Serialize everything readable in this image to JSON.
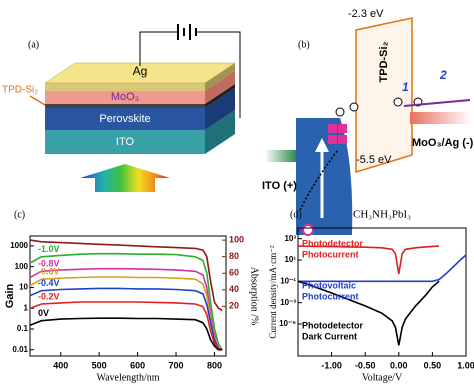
{
  "panels": {
    "a": {
      "label": "(a)",
      "ag": "Ag",
      "moo3": "MoO₃",
      "tpd": "TPD-Si₂",
      "perovskite": "Perovskite",
      "ito": "ITO"
    },
    "b": {
      "label": "(b)",
      "lumo": "-2.3 eV",
      "tpd": "TPD-Si₂",
      "step1": "1",
      "step2": "2",
      "anode": "MoO₃/Ag (-)",
      "homo": "-5.5 eV",
      "ito": "ITO (+)"
    }
  },
  "chart_data": [
    {
      "type": "line",
      "panel_label": "(c)",
      "xlabel": "Wavelength/nm",
      "ylabel": "Gain",
      "y2label": "Absorption /%",
      "ylog": true,
      "xlim": [
        320,
        830
      ],
      "xticks": [
        400,
        500,
        600,
        700,
        800
      ],
      "ylim": [
        0.005,
        3000
      ],
      "yticks": [
        1000,
        100,
        10,
        1,
        0.1,
        0.01
      ],
      "y2lim": [
        -40,
        105
      ],
      "y2ticks": [
        20,
        40,
        60,
        80,
        100
      ],
      "y2color": "#8b1a1a",
      "x": [
        320,
        350,
        400,
        450,
        500,
        550,
        600,
        650,
        700,
        750,
        770,
        780,
        790,
        800,
        810,
        820
      ],
      "series": [
        {
          "name": "-1.0V",
          "color": "#2bb02b",
          "values": [
            150,
            300,
            350,
            400,
            420,
            420,
            400,
            400,
            380,
            300,
            200,
            50,
            2,
            0.1,
            0.02,
            0.01
          ]
        },
        {
          "name": "-0.8V",
          "color": "#d62fb0",
          "values": [
            30,
            60,
            70,
            75,
            80,
            80,
            78,
            75,
            70,
            60,
            40,
            10,
            0.5,
            0.05,
            0.015,
            0.01
          ]
        },
        {
          "name": "-0.6V",
          "color": "#d9a020",
          "values": [
            12,
            25,
            28,
            30,
            32,
            32,
            30,
            30,
            28,
            25,
            15,
            4,
            0.3,
            0.04,
            0.015,
            0.01
          ]
        },
        {
          "name": "-0.4V",
          "color": "#2040d0",
          "values": [
            4,
            7,
            8,
            8.5,
            9,
            9,
            8.5,
            8.5,
            8,
            7,
            5,
            1.5,
            0.2,
            0.03,
            0.012,
            0.01
          ]
        },
        {
          "name": "-0.2V",
          "color": "#e02020",
          "values": [
            1,
            1.6,
            1.8,
            2,
            2,
            2,
            2,
            1.9,
            1.8,
            1.6,
            1.2,
            0.5,
            0.08,
            0.02,
            0.011,
            0.01
          ]
        },
        {
          "name": "0V",
          "color": "#000000",
          "values": [
            0.15,
            0.25,
            0.3,
            0.32,
            0.33,
            0.33,
            0.32,
            0.32,
            0.3,
            0.28,
            0.2,
            0.1,
            0.03,
            0.015,
            0.01,
            0.01
          ]
        },
        {
          "color": "#8b1a1a",
          "axis": "y2",
          "values": [
            100,
            98,
            97,
            96,
            95,
            94,
            93,
            92,
            91,
            90,
            88,
            80,
            50,
            25,
            18,
            15
          ]
        }
      ]
    },
    {
      "type": "line",
      "panel_label": "(d)",
      "title": "CH₃NH₃PbI₃",
      "xlabel": "Voltage/V",
      "ylabel": "Current density/mA·cm⁻²",
      "ylog": true,
      "xlim": [
        -1.5,
        1.0
      ],
      "xticks": [
        {
          "value": -1,
          "label": "-1.00"
        },
        {
          "value": -0.5,
          "label": "-0.50"
        },
        {
          "value": 0,
          "label": "0.00"
        },
        {
          "value": 0.5,
          "label": "0.50"
        },
        {
          "value": 1,
          "label": "1.00"
        }
      ],
      "ylim": [
        1e-08,
        10000
      ],
      "yticks": [
        {
          "value": 1000,
          "label": "10³"
        },
        {
          "value": 10,
          "label": "10¹"
        },
        {
          "value": 0.1,
          "label": "10⁻¹"
        },
        {
          "value": 0.001,
          "label": "10⁻³"
        },
        {
          "value": 1e-05,
          "label": "10⁻⁵"
        }
      ],
      "x": [
        -1.5,
        -1.25,
        -1.0,
        -0.75,
        -0.5,
        -0.25,
        -0.1,
        -0.05,
        0,
        0.05,
        0.1,
        0.25,
        0.4,
        0.5,
        0.6,
        0.7,
        0.8,
        0.9,
        1.0
      ],
      "series": [
        {
          "color": "#e02020",
          "values": [
            200,
            190,
            180,
            170,
            160,
            140,
            100,
            40,
            0.5,
            40,
            100,
            140,
            170,
            190,
            200,
            null,
            null,
            null,
            null
          ]
        },
        {
          "color": "#2040d0",
          "values": [
            0.1,
            0.1,
            0.1,
            0.1,
            0.1,
            0.1,
            0.1,
            0.1,
            0.1,
            0.1,
            0.1,
            0.1,
            0.1,
            0.1,
            0.15,
            0.5,
            2,
            8,
            30
          ]
        },
        {
          "color": "#000000",
          "values": [
            0.1,
            0.03,
            0.008,
            0.002,
            0.0005,
            0.0001,
            2e-05,
            5e-06,
            1e-07,
            5e-06,
            3e-05,
            0.0005,
            0.005,
            0.03,
            0.1,
            null,
            null,
            null,
            null
          ]
        }
      ],
      "annotations": [
        {
          "lines": [
            "Photodetector",
            "Photocurrent"
          ],
          "color": "#e02020"
        },
        {
          "lines": [
            "Photovoltaic",
            "Photocurrent"
          ],
          "color": "#2040d0"
        },
        {
          "lines": [
            "Photodetector",
            "Dark Current"
          ],
          "color": "#000000"
        }
      ]
    }
  ]
}
